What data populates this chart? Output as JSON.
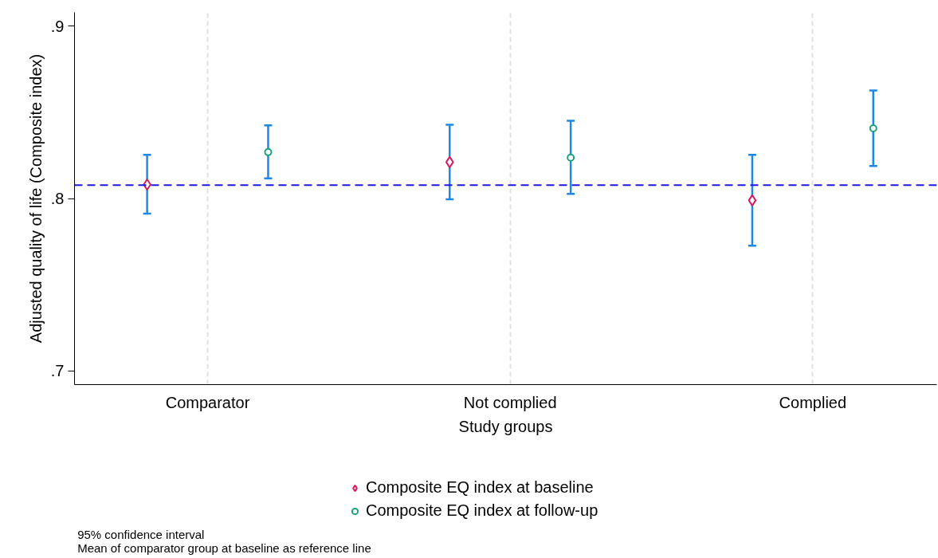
{
  "chart_data": {
    "type": "scatter",
    "categories": [
      "Comparator",
      "Not complied",
      "Complied"
    ],
    "xlabel": "Study groups",
    "ylabel": "Adjusted quality of life (Composite index)",
    "ylim": [
      0.692,
      0.908
    ],
    "yticks": [
      {
        "value": 0.7,
        "label": ".7"
      },
      {
        "value": 0.8,
        "label": ".8"
      },
      {
        "value": 0.9,
        "label": ".9"
      }
    ],
    "series": [
      {
        "name": "Composite EQ index at baseline",
        "color": "#d81b60",
        "marker": "diamond",
        "values": [
          0.8081,
          0.8211,
          0.7989
        ],
        "errors": [
          [
            0.7912,
            0.8253
          ],
          [
            0.7995,
            0.8428
          ],
          [
            0.7726,
            0.8253
          ]
        ]
      },
      {
        "name": "Composite EQ index at follow-up",
        "color": "#1aa37a",
        "marker": "circle",
        "values": [
          0.8269,
          0.8237,
          0.8407
        ],
        "errors": [
          [
            0.8117,
            0.8424
          ],
          [
            0.8027,
            0.8451
          ],
          [
            0.8189,
            0.8627
          ]
        ]
      }
    ],
    "ref_lines": [
      {
        "axis": "y",
        "value": 0.8078,
        "color": "#1a1ae6",
        "line_style": "dashed"
      }
    ],
    "grid": "x",
    "legend": "bottom",
    "annotations": [
      "95% confidence interval",
      "Mean of comparator group at baseline as reference line"
    ]
  }
}
